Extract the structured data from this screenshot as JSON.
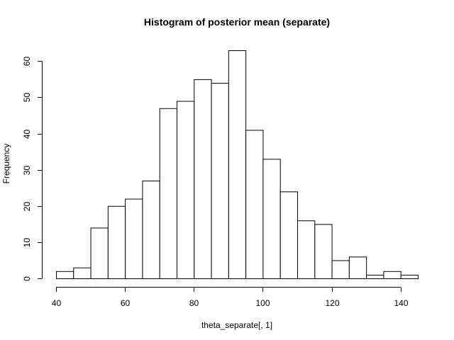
{
  "chart_data": {
    "type": "bar",
    "title": "Histogram of posterior mean (separate)",
    "xlabel": "theta_separate[, 1]",
    "ylabel": "Frequency",
    "xlim": [
      40,
      145
    ],
    "ylim": [
      0,
      63
    ],
    "bins": [
      {
        "from": 40,
        "to": 45,
        "count": 2
      },
      {
        "from": 45,
        "to": 50,
        "count": 3
      },
      {
        "from": 50,
        "to": 55,
        "count": 14
      },
      {
        "from": 55,
        "to": 60,
        "count": 20
      },
      {
        "from": 60,
        "to": 65,
        "count": 22
      },
      {
        "from": 65,
        "to": 70,
        "count": 27
      },
      {
        "from": 70,
        "to": 75,
        "count": 47
      },
      {
        "from": 75,
        "to": 80,
        "count": 49
      },
      {
        "from": 80,
        "to": 85,
        "count": 55
      },
      {
        "from": 85,
        "to": 90,
        "count": 54
      },
      {
        "from": 90,
        "to": 95,
        "count": 63
      },
      {
        "from": 95,
        "to": 100,
        "count": 41
      },
      {
        "from": 100,
        "to": 105,
        "count": 33
      },
      {
        "from": 105,
        "to": 110,
        "count": 24
      },
      {
        "from": 110,
        "to": 115,
        "count": 16
      },
      {
        "from": 115,
        "to": 120,
        "count": 15
      },
      {
        "from": 120,
        "to": 125,
        "count": 5
      },
      {
        "from": 125,
        "to": 130,
        "count": 6
      },
      {
        "from": 130,
        "to": 135,
        "count": 1
      },
      {
        "from": 135,
        "to": 140,
        "count": 2
      },
      {
        "from": 140,
        "to": 145,
        "count": 1
      }
    ],
    "x_ticks": [
      40,
      60,
      80,
      100,
      120,
      140
    ],
    "y_ticks": [
      0,
      10,
      20,
      30,
      40,
      50,
      60
    ],
    "bar_fill": "#ffffff",
    "bar_stroke": "#000000",
    "grid": false,
    "legend": "none"
  }
}
